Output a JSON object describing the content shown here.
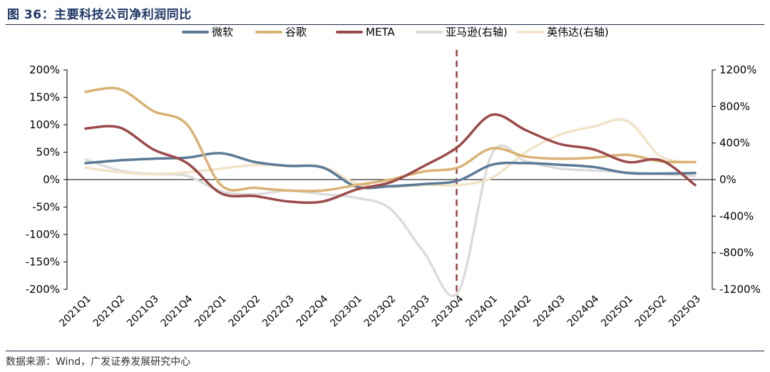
{
  "title": "图 36：主要科技公司净利润同比",
  "source": "数据来源：Wind，广发证券发展研究中心",
  "chart_data": {
    "type": "line",
    "categories": [
      "2021Q1",
      "2021Q2",
      "2021Q3",
      "2021Q4",
      "2022Q1",
      "2022Q2",
      "2022Q3",
      "2022Q4",
      "2023Q1",
      "2023Q2",
      "2023Q3",
      "2023Q4",
      "2024Q1",
      "2024Q2",
      "2024Q3",
      "2024Q4",
      "2025Q1",
      "2025Q2",
      "2025Q3"
    ],
    "left_axis": {
      "min": -200,
      "max": 200,
      "step": 50,
      "suffix": "%"
    },
    "right_axis": {
      "min": -1200,
      "max": 1200,
      "step": 400,
      "suffix": "%"
    },
    "vertical_marker": {
      "category": "2023Q4",
      "color": "#a04040",
      "style": "dashed"
    },
    "series": [
      {
        "name": "微软",
        "axis": "left",
        "color": "#5b7a97",
        "values": [
          30,
          35,
          38,
          40,
          48,
          32,
          25,
          22,
          -13,
          -12,
          -8,
          -2,
          27,
          30,
          27,
          23,
          12,
          11,
          12
        ]
      },
      {
        "name": "谷歌",
        "axis": "left",
        "color": "#d9b274",
        "values": [
          160,
          165,
          125,
          100,
          -10,
          -15,
          -20,
          -20,
          -10,
          0,
          15,
          22,
          57,
          42,
          38,
          40,
          45,
          33,
          32
        ]
      },
      {
        "name": "META",
        "axis": "left",
        "color": "#9b4a4a",
        "values": [
          93,
          95,
          55,
          30,
          -25,
          -30,
          -40,
          -40,
          -18,
          -5,
          25,
          60,
          118,
          90,
          65,
          55,
          32,
          35,
          -10
        ]
      },
      {
        "name": "亚马逊(右轴)",
        "axis": "right",
        "color": "#dcdcdc",
        "values": [
          220,
          100,
          60,
          40,
          -130,
          -160,
          -120,
          -160,
          -200,
          -320,
          -800,
          -1230,
          280,
          200,
          120,
          100,
          80,
          60,
          40
        ]
      },
      {
        "name": "英伟达(右轴)",
        "axis": "right",
        "color": "#f0e3c8",
        "values": [
          130,
          80,
          60,
          80,
          120,
          160,
          150,
          140,
          -40,
          -80,
          -60,
          -60,
          20,
          300,
          490,
          580,
          640,
          250,
          190
        ]
      }
    ]
  }
}
